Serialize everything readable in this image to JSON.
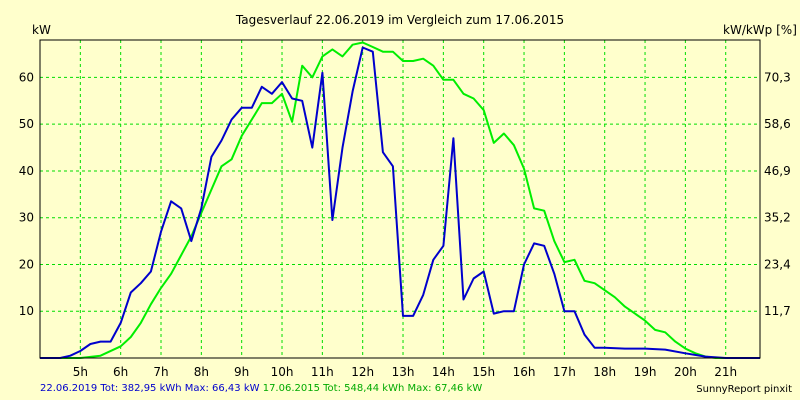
{
  "chart_data": {
    "type": "line",
    "title": "Tagesverlauf 22.06.2019 im Vergleich zum 17.06.2015",
    "ylabel_left": "kW",
    "ylabel_right": "kW/kWp [%]",
    "x_unit": "hour",
    "x_ticks": [
      "5h",
      "6h",
      "7h",
      "8h",
      "9h",
      "10h",
      "11h",
      "12h",
      "13h",
      "14h",
      "15h",
      "16h",
      "17h",
      "18h",
      "19h",
      "20h",
      "21h"
    ],
    "xlim": [
      4.0,
      21.85
    ],
    "ylim": [
      0,
      68
    ],
    "y_ticks": [
      10,
      20,
      30,
      40,
      50,
      60
    ],
    "y_right_ticks": [
      "11,7",
      "23,4",
      "35,2",
      "46,9",
      "58,6",
      "70,3"
    ],
    "grid": true,
    "colors": {
      "background": "#ffffcc",
      "grid": "#00dd00",
      "series1": "#0000cc",
      "series2": "#00ee00",
      "axis": "#000000"
    },
    "series": [
      {
        "name": "22.06.2019",
        "color": "#0000cc",
        "points": [
          [
            4.0,
            0
          ],
          [
            4.5,
            0
          ],
          [
            4.75,
            0.5
          ],
          [
            5.0,
            1.5
          ],
          [
            5.25,
            3
          ],
          [
            5.5,
            3.5
          ],
          [
            5.75,
            3.5
          ],
          [
            6.0,
            7.5
          ],
          [
            6.25,
            14
          ],
          [
            6.5,
            16
          ],
          [
            6.75,
            18.5
          ],
          [
            7.0,
            27
          ],
          [
            7.25,
            33.5
          ],
          [
            7.5,
            32
          ],
          [
            7.75,
            25
          ],
          [
            8.0,
            32
          ],
          [
            8.25,
            43
          ],
          [
            8.5,
            46.5
          ],
          [
            8.75,
            51
          ],
          [
            9.0,
            53.5
          ],
          [
            9.25,
            53.5
          ],
          [
            9.5,
            58
          ],
          [
            9.75,
            56.5
          ],
          [
            10.0,
            59
          ],
          [
            10.25,
            55.5
          ],
          [
            10.5,
            55
          ],
          [
            10.75,
            45
          ],
          [
            11.0,
            61
          ],
          [
            11.25,
            29.5
          ],
          [
            11.5,
            45
          ],
          [
            11.75,
            57
          ],
          [
            12.0,
            66.4
          ],
          [
            12.25,
            65.5
          ],
          [
            12.5,
            44
          ],
          [
            12.75,
            41
          ],
          [
            13.0,
            9
          ],
          [
            13.25,
            9
          ],
          [
            13.5,
            13.5
          ],
          [
            13.75,
            21
          ],
          [
            14.0,
            24
          ],
          [
            14.25,
            47
          ],
          [
            14.5,
            12.5
          ],
          [
            14.75,
            17
          ],
          [
            15.0,
            18.5
          ],
          [
            15.25,
            9.5
          ],
          [
            15.5,
            10
          ],
          [
            15.75,
            10
          ],
          [
            16.0,
            20
          ],
          [
            16.25,
            24.5
          ],
          [
            16.5,
            24
          ],
          [
            16.75,
            18
          ],
          [
            17.0,
            10
          ],
          [
            17.25,
            10
          ],
          [
            17.5,
            5
          ],
          [
            17.75,
            2.2
          ],
          [
            18.0,
            2.2
          ],
          [
            18.5,
            2
          ],
          [
            19.0,
            2
          ],
          [
            19.5,
            1.8
          ],
          [
            20.0,
            1
          ],
          [
            20.5,
            0.3
          ],
          [
            21.0,
            0
          ],
          [
            21.5,
            0
          ],
          [
            21.85,
            0
          ]
        ]
      },
      {
        "name": "17.06.2015",
        "color": "#00ee00",
        "points": [
          [
            4.0,
            0
          ],
          [
            5.0,
            0
          ],
          [
            5.5,
            0.5
          ],
          [
            6.0,
            2.5
          ],
          [
            6.25,
            4.5
          ],
          [
            6.5,
            7.5
          ],
          [
            6.75,
            11.5
          ],
          [
            7.0,
            15
          ],
          [
            7.25,
            18
          ],
          [
            7.5,
            22
          ],
          [
            7.75,
            26
          ],
          [
            8.0,
            31
          ],
          [
            8.25,
            36
          ],
          [
            8.5,
            41
          ],
          [
            8.75,
            42.5
          ],
          [
            9.0,
            47.5
          ],
          [
            9.25,
            51
          ],
          [
            9.5,
            54.5
          ],
          [
            9.75,
            54.5
          ],
          [
            10.0,
            56.5
          ],
          [
            10.25,
            50.5
          ],
          [
            10.5,
            62.5
          ],
          [
            10.75,
            60
          ],
          [
            11.0,
            64.5
          ],
          [
            11.25,
            66
          ],
          [
            11.5,
            64.5
          ],
          [
            11.75,
            67
          ],
          [
            12.0,
            67.46
          ],
          [
            12.25,
            66.5
          ],
          [
            12.5,
            65.5
          ],
          [
            12.75,
            65.5
          ],
          [
            13.0,
            63.5
          ],
          [
            13.25,
            63.5
          ],
          [
            13.5,
            64
          ],
          [
            13.75,
            62.5
          ],
          [
            14.0,
            59.5
          ],
          [
            14.25,
            59.5
          ],
          [
            14.5,
            56.5
          ],
          [
            14.75,
            55.5
          ],
          [
            15.0,
            53
          ],
          [
            15.25,
            46
          ],
          [
            15.5,
            48
          ],
          [
            15.75,
            45.5
          ],
          [
            16.0,
            40.5
          ],
          [
            16.25,
            32
          ],
          [
            16.5,
            31.5
          ],
          [
            16.75,
            25
          ],
          [
            17.0,
            20.5
          ],
          [
            17.25,
            21
          ],
          [
            17.5,
            16.5
          ],
          [
            17.75,
            16
          ],
          [
            18.0,
            14.5
          ],
          [
            18.25,
            13
          ],
          [
            18.5,
            11
          ],
          [
            18.75,
            9.5
          ],
          [
            19.0,
            8
          ],
          [
            19.25,
            6
          ],
          [
            19.5,
            5.5
          ],
          [
            19.75,
            3.5
          ],
          [
            20.0,
            2
          ],
          [
            20.25,
            1
          ],
          [
            20.5,
            0.3
          ],
          [
            20.75,
            0
          ],
          [
            21.85,
            0
          ]
        ]
      }
    ]
  },
  "footer": {
    "series1_text": "22.06.2019 Tot: 382,95 kWh Max: 66,43 kW",
    "series2_text": "17.06.2015 Tot: 548,44 kWh Max: 67,46 kW",
    "brand": "SunnyReport pinxit"
  }
}
